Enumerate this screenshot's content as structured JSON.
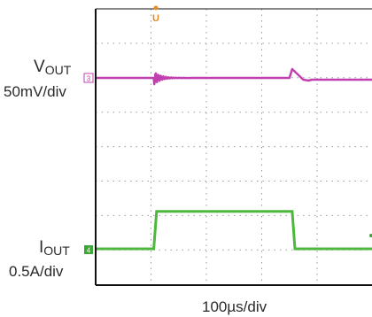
{
  "chart_data": {
    "type": "line",
    "xlabel": "100µs/div",
    "grid": true,
    "divisions": {
      "x": 10,
      "y": 8
    },
    "trigger_marker": "U",
    "series": [
      {
        "name_main": "V",
        "name_sub": "OUT",
        "scale": "50mV/div",
        "channel": "3",
        "color": "#c040b0",
        "x": [
          0,
          1.05,
          1.1,
          1.2,
          1.4,
          1.8,
          3.5,
          3.55,
          3.75,
          3.85,
          3.9,
          4.2,
          6.5
        ],
        "y": [
          0,
          0,
          5,
          -2,
          1,
          0,
          0,
          10,
          -2,
          -3,
          -2,
          -2,
          -2
        ]
      },
      {
        "name_main": "I",
        "name_sub": "OUT",
        "scale": "0.5A/div",
        "channel": "4",
        "color": "#4cb83c",
        "x": [
          0,
          1.05,
          1.1,
          3.55,
          3.6,
          6.5
        ],
        "y": [
          0,
          0,
          0.68,
          0.68,
          0,
          0
        ]
      }
    ]
  }
}
